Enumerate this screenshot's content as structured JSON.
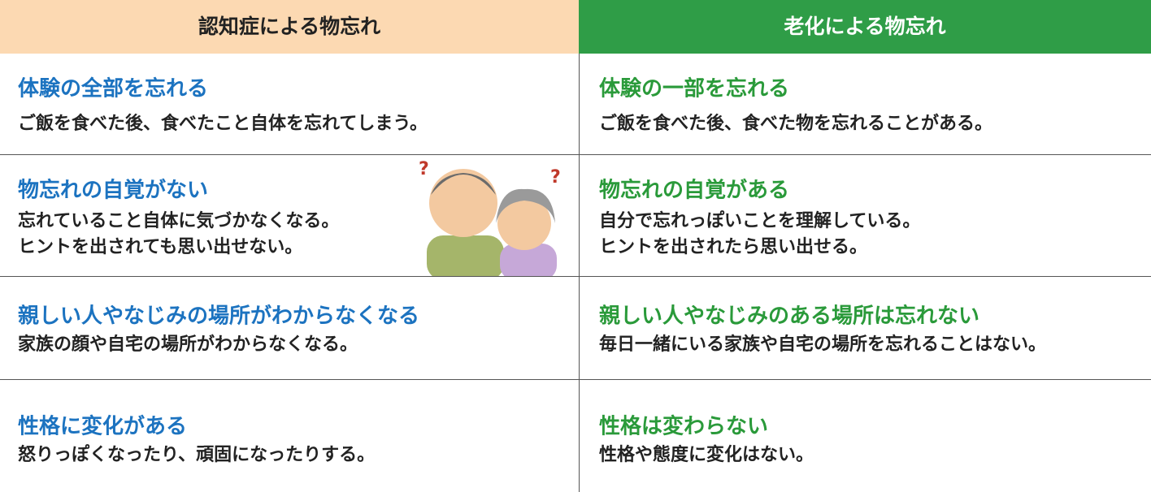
{
  "table": {
    "headers": [
      "認知症による物忘れ",
      "老化による物忘れ"
    ],
    "rows": [
      [
        {
          "title": "体験の全部を忘れる",
          "lines": [
            "ご飯を食べた後、食べたこと自体を忘れてしまう。"
          ]
        },
        {
          "title": "体験の一部を忘れる",
          "lines": [
            "ご飯を食べた後、食べた物を忘れることがある。"
          ]
        }
      ],
      [
        {
          "title": "物忘れの自覚がない",
          "lines": [
            "忘れていること自体に気づかなくなる。",
            "ヒントを出されても思い出せない。"
          ]
        },
        {
          "title": "物忘れの自覚がある",
          "lines": [
            "自分で忘れっぽいことを理解している。",
            "ヒントを出されたら思い出せる。"
          ]
        }
      ],
      [
        {
          "title": "親しい人やなじみの場所がわからなくなる",
          "lines": [
            "家族の顔や自宅の場所がわからなくなる。"
          ]
        },
        {
          "title": "親しい人やなじみのある場所は忘れない",
          "lines": [
            "毎日一緒にいる家族や自宅の場所を忘れることはない。"
          ]
        }
      ],
      [
        {
          "title": "性格に変化がある",
          "lines": [
            "怒りっぽくなったり、頑固になったりする。"
          ]
        },
        {
          "title": "性格は変わらない",
          "lines": [
            "性格や態度に変化はない。"
          ]
        }
      ]
    ]
  }
}
